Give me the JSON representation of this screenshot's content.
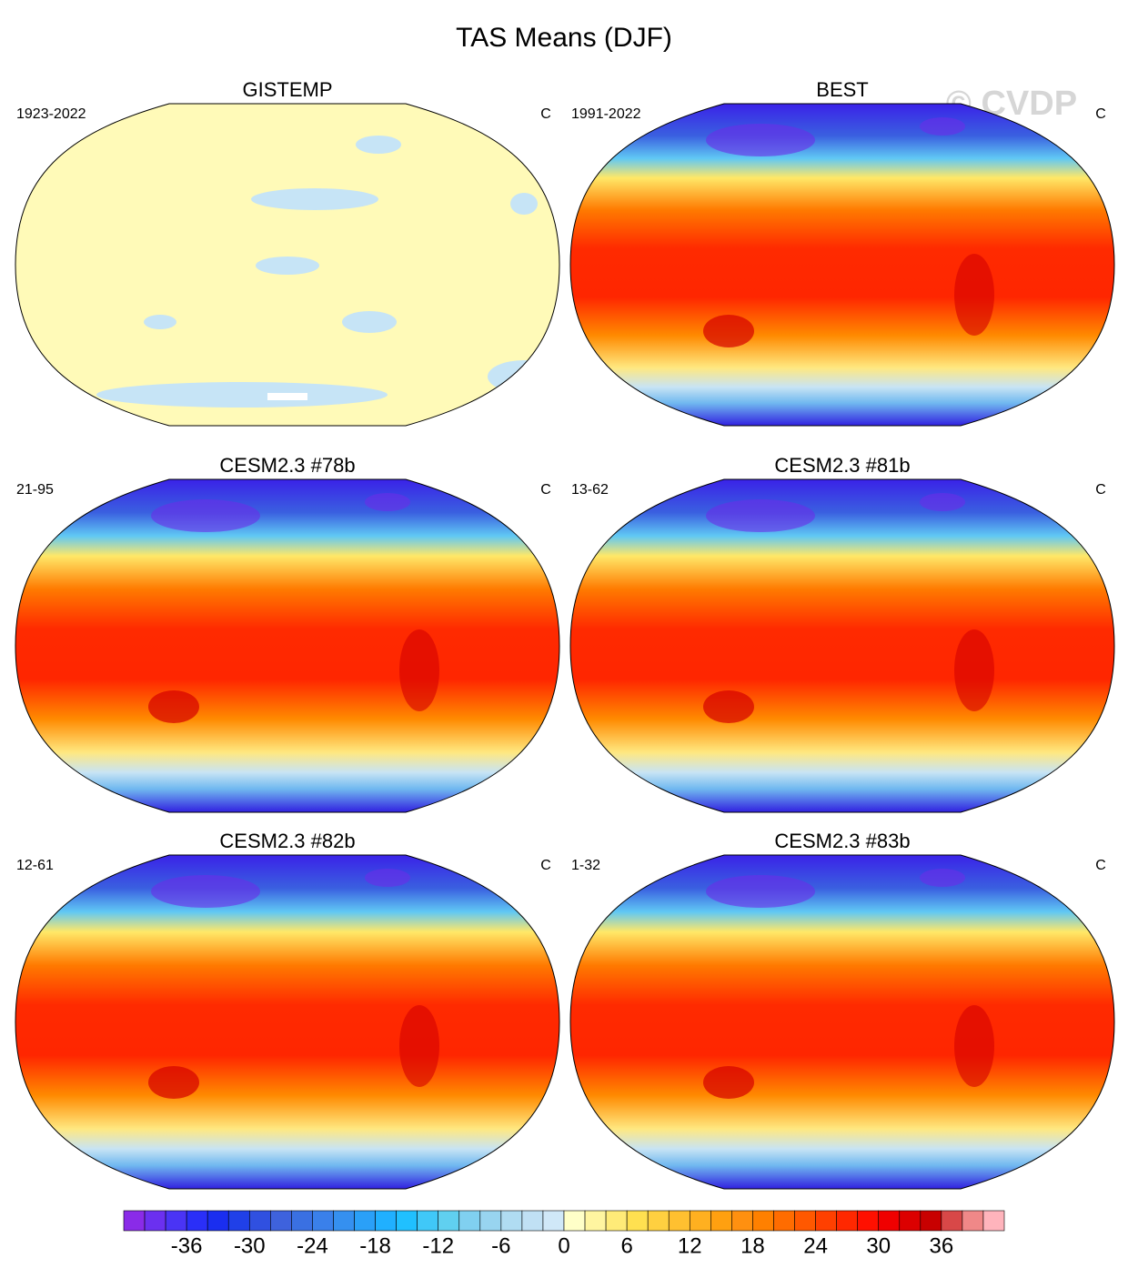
{
  "title": "TAS Means (DJF)",
  "watermark": "© CVDP",
  "panels": [
    {
      "title": "GISTEMP",
      "period": "1923-2022",
      "units": "C"
    },
    {
      "title": "BEST",
      "period": "1991-2022",
      "units": "C"
    },
    {
      "title": "CESM2.3 #78b",
      "period": "21-95",
      "units": "C"
    },
    {
      "title": "CESM2.3 #81b",
      "period": "13-62",
      "units": "C"
    },
    {
      "title": "CESM2.3 #82b",
      "period": "12-61",
      "units": "C"
    },
    {
      "title": "CESM2.3 #83b",
      "period": "1-32",
      "units": "C"
    }
  ],
  "colorbar": {
    "lim": [
      -42,
      42
    ],
    "ticks": [
      -36,
      -30,
      -24,
      -18,
      -12,
      -6,
      0,
      6,
      12,
      18,
      24,
      30,
      36
    ],
    "colors": [
      "#8a2be8",
      "#6b30f0",
      "#4a34f5",
      "#2a2ff8",
      "#1a2ef0",
      "#2040e8",
      "#3050e0",
      "#3e62dd",
      "#3a70e2",
      "#3a80ea",
      "#3590f0",
      "#2aa0f8",
      "#20b0ff",
      "#20c0ff",
      "#40c8f8",
      "#60d0f0",
      "#80d0f0",
      "#98d4f0",
      "#b0dcf2",
      "#c0e0f4",
      "#d0e8f8",
      "#ffffc8",
      "#fff5a0",
      "#ffeb78",
      "#ffe050",
      "#ffd040",
      "#ffc030",
      "#ffb020",
      "#ffa010",
      "#ff9010",
      "#ff8000",
      "#ff6c00",
      "#ff5800",
      "#ff4000",
      "#ff2800",
      "#ff1000",
      "#f00000",
      "#dc0000",
      "#c80000",
      "#d84848",
      "#f08888",
      "#ffb4bc"
    ]
  }
}
